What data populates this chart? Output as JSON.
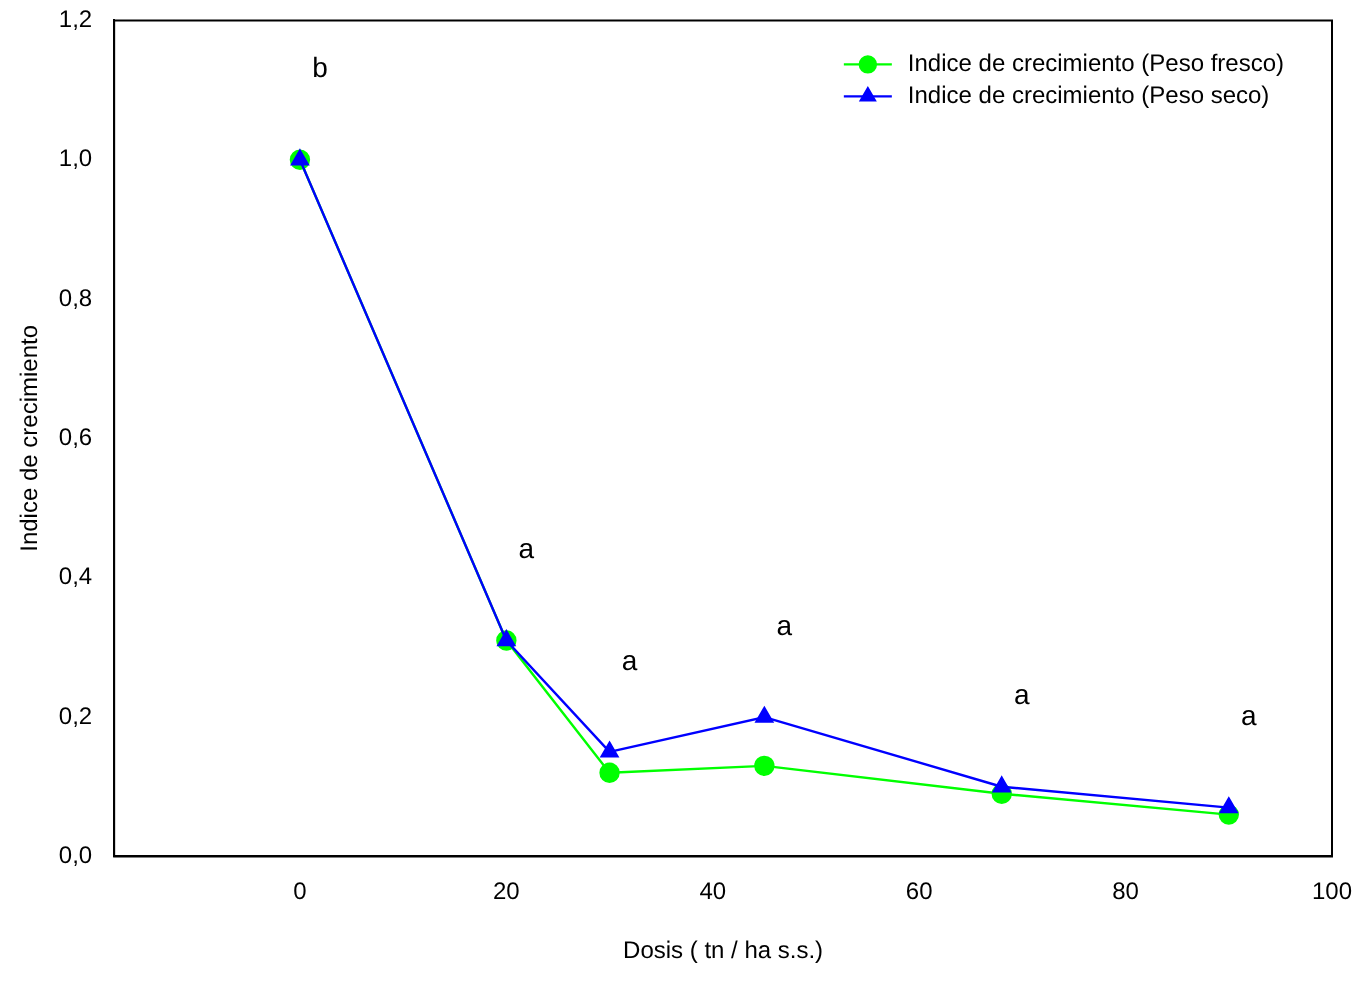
{
  "chart_data": {
    "type": "line",
    "xlabel": "Dosis ( tn / ha s.s.)",
    "ylabel": "Indice de crecimiento",
    "x": [
      0,
      20,
      30,
      45,
      68,
      90
    ],
    "series": [
      {
        "name": "Indice de crecimiento (Peso fresco)",
        "color": "#00ff00",
        "marker": "circle",
        "values": [
          1.0,
          0.31,
          0.12,
          0.13,
          0.09,
          0.06
        ]
      },
      {
        "name": "Indice de crecimiento (Peso seco)",
        "color": "#0000ff",
        "marker": "triangle",
        "values": [
          1.0,
          0.31,
          0.15,
          0.2,
          0.1,
          0.07
        ]
      }
    ],
    "xlim": [
      -18,
      100
    ],
    "xticks": [
      0,
      20,
      40,
      60,
      80,
      100
    ],
    "ylim": [
      0,
      1.2
    ],
    "yticks": [
      {
        "value": 0,
        "label": "0,0"
      },
      {
        "value": 0.2,
        "label": "0,2"
      },
      {
        "value": 0.4,
        "label": "0,4"
      },
      {
        "value": 0.6,
        "label": "0,6"
      },
      {
        "value": 0.8,
        "label": "0,8"
      },
      {
        "value": 1.0,
        "label": "1,0"
      },
      {
        "value": 1.2,
        "label": "1,2"
      }
    ],
    "annotations": [
      {
        "text": "b",
        "x": 0,
        "y": 1.0
      },
      {
        "text": "a",
        "x": 20,
        "y": 0.31
      },
      {
        "text": "a",
        "x": 30,
        "y": 0.15
      },
      {
        "text": "a",
        "x": 45,
        "y": 0.2
      },
      {
        "text": "a",
        "x": 68,
        "y": 0.1
      },
      {
        "text": "a",
        "x": 90,
        "y": 0.07
      }
    ],
    "legend": "top right",
    "grid": false,
    "line_style": "solid"
  }
}
